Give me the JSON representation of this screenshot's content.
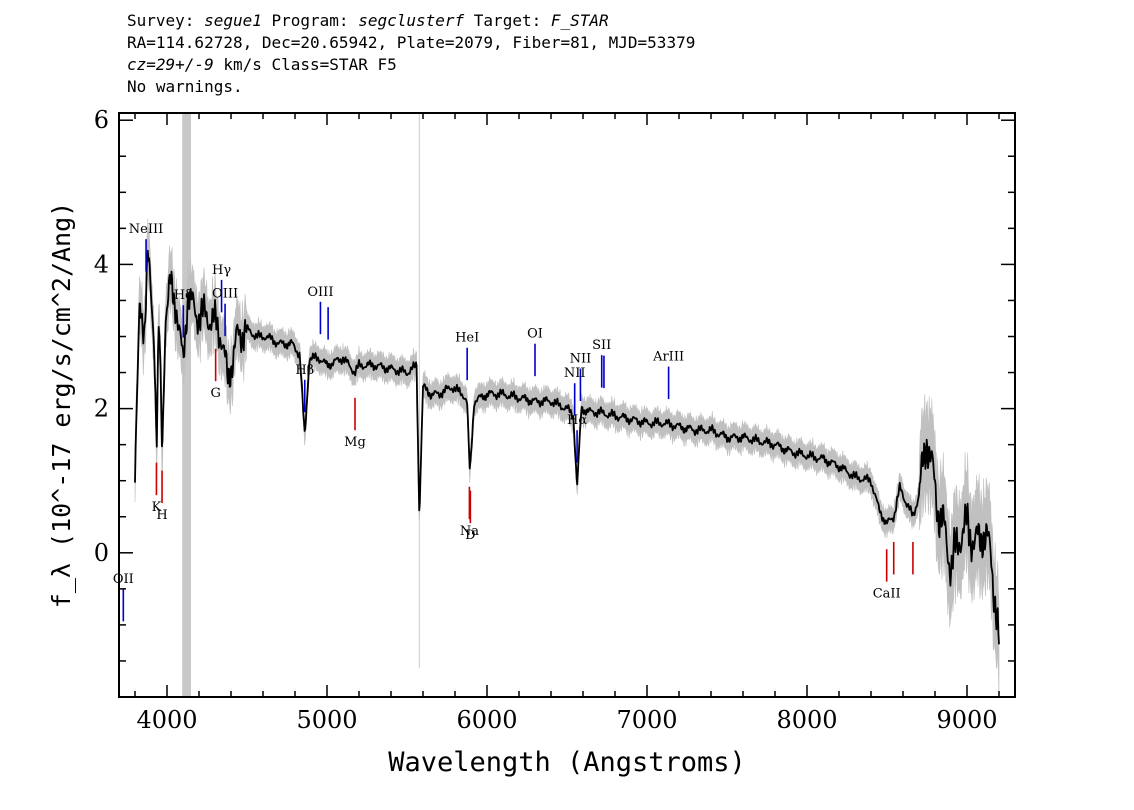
{
  "header": {
    "line1": {
      "survey_label": "Survey: ",
      "survey": "segue1",
      "program_label": " Program: ",
      "program": "segclusterf",
      "target_label": " Target: ",
      "target": "F_STAR"
    },
    "line2": "RA=114.62728, Dec=20.65942, Plate=2079, Fiber=81, MJD=53379",
    "line3": {
      "cz": "cz=29+/-9",
      "rest": " km/s Class=STAR F5"
    },
    "line4": "No warnings."
  },
  "colors": {
    "flux": "#000000",
    "error": "#c0c0c0",
    "emission": "#0000cc",
    "absorption": "#cc0000",
    "axis": "#000000"
  },
  "chart_data": {
    "type": "line",
    "title": "",
    "xlabel": "Wavelength (Angstroms)",
    "ylabel": "f_λ (10^-17 erg/s/cm^2/Ang)",
    "xlim": [
      3700,
      9300
    ],
    "ylim": [
      -2,
      6.1
    ],
    "xticks": [
      4000,
      5000,
      6000,
      7000,
      8000,
      9000
    ],
    "yticks": [
      0,
      2,
      4,
      6
    ],
    "masked_band": [
      4095,
      4150
    ],
    "sky_line": 5577,
    "series": [
      {
        "x": [
          3800,
          3830,
          3860,
          3880,
          3900,
          3920,
          3935,
          3950,
          3970,
          3990,
          4020,
          4060,
          4101,
          4130,
          4180,
          4240,
          4300,
          4340,
          4380,
          4440,
          4500,
          4560,
          4620,
          4700,
          4780,
          4830,
          4861,
          4890,
          4950,
          5000,
          5100,
          5175,
          5200,
          5300,
          5400,
          5500,
          5560,
          5577,
          5600,
          5650,
          5700,
          5780,
          5850,
          5875,
          5893,
          5920,
          6000,
          6100,
          6200,
          6300,
          6400,
          6500,
          6540,
          6563,
          6590,
          6650,
          6700,
          6800,
          6900,
          7000,
          7100,
          7200,
          7300,
          7400,
          7500,
          7600,
          7700,
          7800,
          7900,
          8000,
          8100,
          8200,
          8300,
          8400,
          8450,
          8498,
          8542,
          8580,
          8620,
          8662,
          8700,
          8750,
          8780,
          8820,
          8860,
          8900,
          8950,
          9000,
          9050,
          9100,
          9150,
          9200
        ],
        "y": [
          1.0,
          3.5,
          3.1,
          4.1,
          3.6,
          3.0,
          1.5,
          3.2,
          1.4,
          3.3,
          3.7,
          3.4,
          2.6,
          3.6,
          3.3,
          3.3,
          3.2,
          3.0,
          2.4,
          3.0,
          3.1,
          3.0,
          3.0,
          2.9,
          2.9,
          2.75,
          1.6,
          2.7,
          2.7,
          2.6,
          2.7,
          2.5,
          2.6,
          2.6,
          2.55,
          2.5,
          2.6,
          0.5,
          2.3,
          2.2,
          2.2,
          2.3,
          2.2,
          2.1,
          1.1,
          2.1,
          2.2,
          2.2,
          2.15,
          2.1,
          2.1,
          2.0,
          1.9,
          0.9,
          2.0,
          1.95,
          1.95,
          1.9,
          1.85,
          1.8,
          1.8,
          1.75,
          1.7,
          1.7,
          1.6,
          1.6,
          1.55,
          1.5,
          1.4,
          1.35,
          1.3,
          1.2,
          1.05,
          1.0,
          0.6,
          0.4,
          0.5,
          0.9,
          0.7,
          0.5,
          0.8,
          1.6,
          1.2,
          0.6,
          0.3,
          -0.2,
          0.2,
          0.4,
          0.1,
          0.3,
          0.0,
          -1.3
        ]
      }
    ],
    "emission_lines": [
      {
        "label": "OII",
        "x": 3727
      },
      {
        "label": "NeIII",
        "x": 3869
      },
      {
        "label": "Hδ",
        "x": 4102
      },
      {
        "label": "Hγ",
        "x": 4341
      },
      {
        "label": "OIII",
        "x": 4363
      },
      {
        "label": "Hβ",
        "x": 4861
      },
      {
        "label": "OIII",
        "x": 4959
      },
      {
        "label": "OIII",
        "x": 5007
      },
      {
        "label": "HeI",
        "x": 5876
      },
      {
        "label": "OI",
        "x": 6300
      },
      {
        "label": "NII",
        "x": 6548
      },
      {
        "label": "Hα",
        "x": 6563
      },
      {
        "label": "NII",
        "x": 6584
      },
      {
        "label": "SII",
        "x": 6717
      },
      {
        "label": "SII",
        "x": 6731
      },
      {
        "label": "ArIII",
        "x": 7135
      }
    ],
    "absorption_lines": [
      {
        "label": "K",
        "x": 3934
      },
      {
        "label": "H",
        "x": 3969
      },
      {
        "label": "G",
        "x": 4304
      },
      {
        "label": "Mg",
        "x": 5175
      },
      {
        "label": "Na",
        "x": 5890
      },
      {
        "label": "D",
        "x": 5896
      },
      {
        "label": "CaII",
        "x": 8498
      },
      {
        "label": "CaII",
        "x": 8542
      },
      {
        "label": "CaII",
        "x": 8662
      }
    ]
  }
}
